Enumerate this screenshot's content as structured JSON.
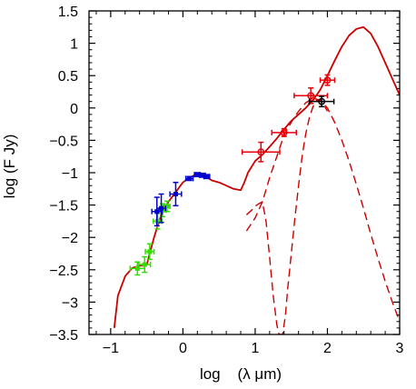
{
  "chart_data": {
    "type": "scatter",
    "xlabel": "log    (λ μm)",
    "ylabel": "log (F Jy)",
    "xlim": [
      -1.3,
      3.0
    ],
    "ylim": [
      -3.5,
      1.5
    ],
    "xticks": [
      -1,
      0,
      1,
      2,
      3
    ],
    "yticks": [
      -3.5,
      -3,
      -2.5,
      -2,
      -1.5,
      -1,
      -0.5,
      0,
      0.5,
      1,
      1.5
    ],
    "xtick_labels": [
      "−1",
      "0",
      "1",
      "2",
      "3"
    ],
    "ytick_labels": [
      "−3.5",
      "−3",
      "−2.5",
      "−2",
      "−1.5",
      "−1",
      "−0.5",
      "0",
      "0.5",
      "1",
      "1.5"
    ],
    "colors": {
      "red": "#e8000b",
      "blue": "#0000cc",
      "green": "#33dd00",
      "black": "#000000"
    },
    "model_total": {
      "style": "solid",
      "color": "#cc0000",
      "x": [
        -0.95,
        -0.9,
        -0.8,
        -0.7,
        -0.6,
        -0.5,
        -0.4,
        -0.3,
        -0.2,
        -0.1,
        0.0,
        0.1,
        0.2,
        0.3,
        0.4,
        0.5,
        0.6,
        0.7,
        0.8,
        0.85,
        0.9,
        1.0,
        1.1,
        1.2,
        1.3,
        1.4,
        1.5,
        1.6,
        1.7,
        1.8,
        1.9,
        2.0,
        2.1,
        2.2,
        2.3,
        2.4,
        2.5,
        2.6,
        2.7,
        2.8,
        2.9,
        3.0
      ],
      "y": [
        -3.4,
        -2.9,
        -2.6,
        -2.47,
        -2.44,
        -2.42,
        -2.0,
        -1.65,
        -1.45,
        -1.3,
        -1.15,
        -1.07,
        -1.02,
        -1.05,
        -1.12,
        -1.15,
        -1.2,
        -1.25,
        -1.27,
        -1.15,
        -1.0,
        -0.82,
        -0.72,
        -0.6,
        -0.47,
        -0.33,
        -0.2,
        -0.1,
        0.0,
        0.12,
        0.28,
        0.5,
        0.73,
        0.95,
        1.12,
        1.22,
        1.25,
        1.15,
        0.95,
        0.7,
        0.45,
        0.2
      ]
    },
    "model_warm": {
      "style": "dashed",
      "color": "#cc0000",
      "x": [
        0.88,
        1.0,
        1.1,
        1.2,
        1.3,
        1.4,
        1.5,
        1.6,
        1.7,
        1.8,
        1.9,
        2.0,
        2.1,
        2.2,
        2.3,
        2.4,
        2.5,
        2.6,
        2.7,
        2.8,
        2.9,
        3.0
      ],
      "y": [
        -1.9,
        -1.7,
        -1.45,
        -1.08,
        -0.75,
        -0.42,
        -0.22,
        -0.05,
        0.08,
        0.15,
        0.12,
        0.0,
        -0.22,
        -0.5,
        -0.82,
        -1.18,
        -1.55,
        -1.95,
        -2.32,
        -2.68,
        -3.0,
        -3.3
      ]
    },
    "model_cold": {
      "style": "dashed",
      "color": "#cc0000",
      "x": [
        0.88,
        0.95,
        1.0,
        1.05,
        1.1,
        1.15,
        1.2,
        1.25,
        1.3,
        1.33,
        1.38,
        1.42,
        1.45,
        1.5,
        1.55,
        1.6,
        1.65,
        1.7,
        1.75,
        1.8,
        1.85,
        1.9,
        1.95,
        2.0
      ],
      "y": [
        -1.65,
        -1.58,
        -1.52,
        -1.48,
        -1.45,
        -1.75,
        -2.3,
        -2.9,
        -3.35,
        -3.5,
        -3.5,
        -3.2,
        -2.8,
        -2.25,
        -1.7,
        -1.2,
        -0.75,
        -0.4,
        -0.15,
        0.02,
        0.12,
        0.12,
        0.05,
        -0.05
      ]
    },
    "series": [
      {
        "color": "#33dd00",
        "marker": "square",
        "points": [
          {
            "x": -0.63,
            "y": -2.48,
            "xerr": 0.1,
            "yerr": 0.1
          },
          {
            "x": -0.53,
            "y": -2.42,
            "xerr": 0.08,
            "yerr": 0.12
          },
          {
            "x": -0.46,
            "y": -2.22,
            "xerr": 0.06,
            "yerr": 0.12
          },
          {
            "x": -0.35,
            "y": -1.75,
            "xerr": 0.06,
            "yerr": 0.12
          },
          {
            "x": -0.28,
            "y": -1.58,
            "xerr": 0.05,
            "yerr": 0.1
          },
          {
            "x": -0.22,
            "y": -1.52,
            "xerr": 0.04,
            "yerr": 0.08
          }
        ]
      },
      {
        "color": "#0000cc",
        "marker": "square",
        "points": [
          {
            "x": -0.36,
            "y": -1.6,
            "xerr": 0.07,
            "yerr": 0.22
          },
          {
            "x": -0.3,
            "y": -1.55,
            "xerr": 0.06,
            "yerr": 0.22
          },
          {
            "x": -0.1,
            "y": -1.33,
            "xerr": 0.08,
            "yerr": 0.18
          },
          {
            "x": 0.09,
            "y": -1.09,
            "xerr": 0.05,
            "yerr": 0.03
          },
          {
            "x": 0.2,
            "y": -1.03,
            "xerr": 0.04,
            "yerr": 0.03
          },
          {
            "x": 0.27,
            "y": -1.04,
            "xerr": 0.04,
            "yerr": 0.03
          },
          {
            "x": 0.33,
            "y": -1.06,
            "xerr": 0.04,
            "yerr": 0.03
          }
        ]
      },
      {
        "color": "#e8000b",
        "marker": "circle",
        "points": [
          {
            "x": 1.08,
            "y": -0.68,
            "xerr": 0.26,
            "yerr": 0.15
          },
          {
            "x": 1.4,
            "y": -0.38,
            "xerr": 0.17,
            "yerr": 0.06
          },
          {
            "x": 1.77,
            "y": 0.19,
            "xerr": 0.23,
            "yerr": 0.12
          },
          {
            "x": 2.0,
            "y": 0.43,
            "xerr": 0.1,
            "yerr": 0.08
          }
        ]
      },
      {
        "color": "#000000",
        "marker": "circle",
        "points": [
          {
            "x": 1.92,
            "y": 0.1,
            "xerr": 0.17,
            "yerr": 0.08
          }
        ]
      }
    ]
  }
}
